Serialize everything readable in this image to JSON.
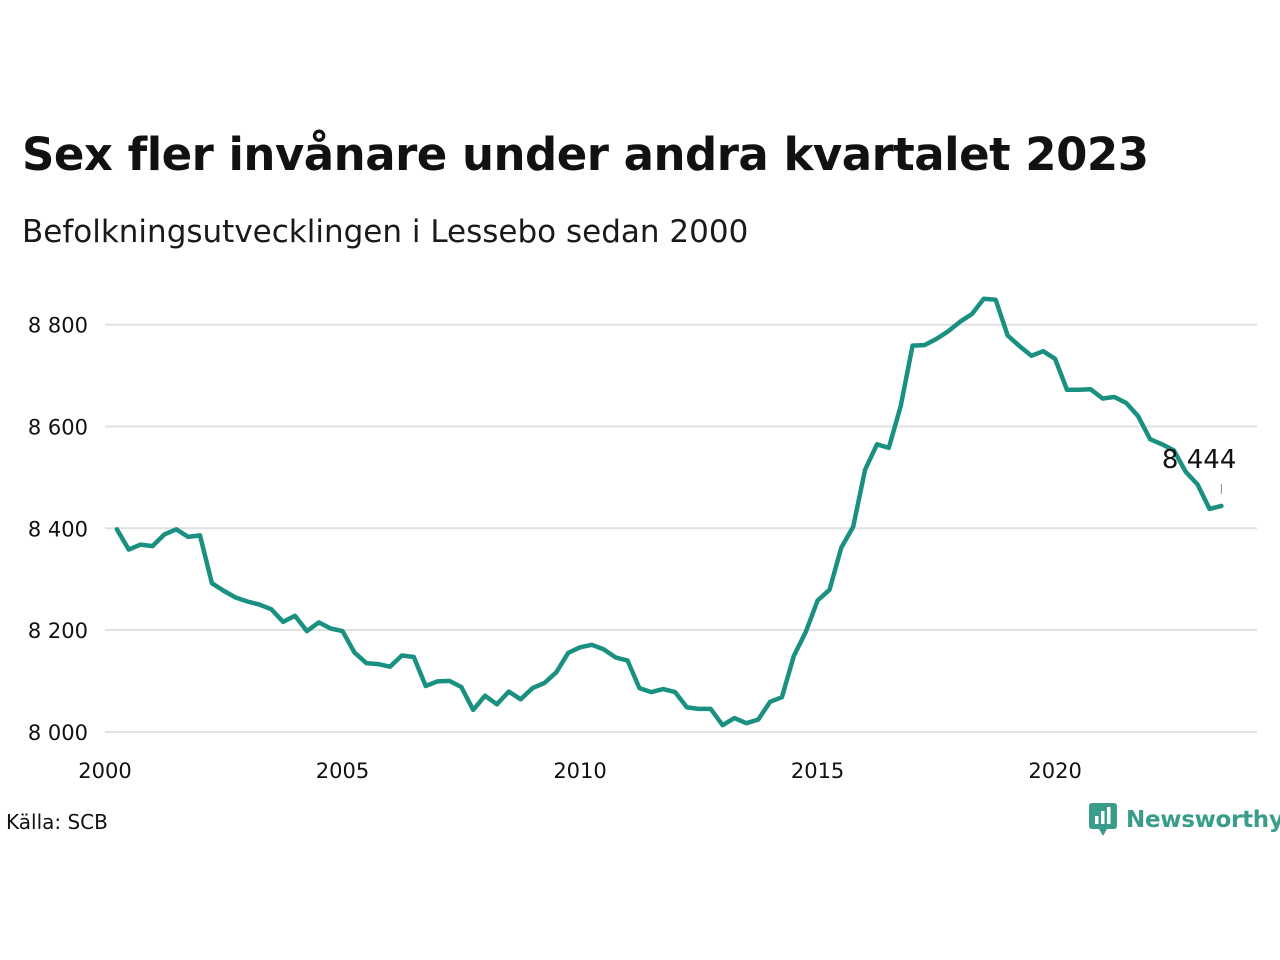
{
  "header": {
    "title": "Sex fler invånare under andra kvartalet 2023",
    "subtitle": "Befolkningsutvecklingen i Lessebo sedan 2000"
  },
  "footer": {
    "source": "Källa: SCB",
    "brand": "Newsworthy",
    "brand_icon": "newsworthy-logo-icon"
  },
  "colors": {
    "line": "#1a9080",
    "grid": "#e1e1e1",
    "brand": "#3a9c8b"
  },
  "chart_data": {
    "type": "line",
    "title": "Sex fler invånare under andra kvartalet 2023",
    "subtitle": "Befolkningsutvecklingen i Lessebo sedan 2000",
    "x_start": 2000.25,
    "x_step": 0.25,
    "xlim": [
      2000,
      2024.25
    ],
    "ylim": [
      7980,
      8880
    ],
    "x_ticks": [
      2000,
      2005,
      2010,
      2015,
      2020
    ],
    "x_tick_labels": [
      "2000",
      "2005",
      "2010",
      "2015",
      "2020"
    ],
    "y_ticks": [
      8000,
      8200,
      8400,
      8600,
      8800
    ],
    "y_tick_labels": [
      "8 000",
      "8 200",
      "8 400",
      "8 600",
      "8 800"
    ],
    "grid": true,
    "series": [
      {
        "values": [
          8398,
          8358,
          8368,
          8365,
          8388,
          8398,
          8383,
          8386,
          8292,
          8277,
          8264,
          8256,
          8250,
          8241,
          8216,
          8228,
          8198,
          8215,
          8203,
          8198,
          8156,
          8135,
          8133,
          8128,
          8150,
          8147,
          8090,
          8099,
          8100,
          8088,
          8043,
          8071,
          8054,
          8079,
          8064,
          8086,
          8096,
          8117,
          8155,
          8166,
          8171,
          8162,
          8146,
          8140,
          8086,
          8078,
          8084,
          8078,
          8048,
          8045,
          8045,
          8013,
          8027,
          8017,
          8024,
          8059,
          8068,
          8149,
          8196,
          8258,
          8279,
          8362,
          8403,
          8515,
          8565,
          8558,
          8640,
          8759,
          8760,
          8772,
          8787,
          8806,
          8821,
          8851,
          8849,
          8779,
          8758,
          8739,
          8748,
          8733,
          8672,
          8672,
          8673,
          8655,
          8658,
          8646,
          8620,
          8575,
          8565,
          8553,
          8511,
          8486,
          8438,
          8444
        ]
      }
    ],
    "annotation": {
      "label": "8 444",
      "x": 2023.5,
      "y": 8444
    }
  }
}
